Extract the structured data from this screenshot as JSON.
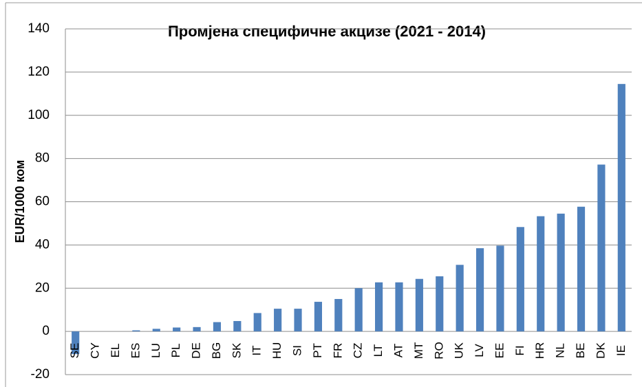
{
  "chart_data": {
    "type": "bar",
    "title": "Промјена специфичне акцизе (2021 - 2014)",
    "y_label": "EUR/1000 ком",
    "categories": [
      "SE",
      "CY",
      "EL",
      "ES",
      "LU",
      "PL",
      "DE",
      "BG",
      "SK",
      "IT",
      "HU",
      "SI",
      "PT",
      "FR",
      "CZ",
      "LT",
      "AT",
      "MT",
      "RO",
      "UK",
      "LV",
      "EE",
      "FI",
      "HR",
      "NL",
      "BE",
      "DK",
      "IE"
    ],
    "values": [
      -10.5,
      0,
      0,
      0.5,
      1.2,
      1.8,
      2,
      4.3,
      4.8,
      8.5,
      10.5,
      10.5,
      13.7,
      15,
      20,
      22.7,
      22.7,
      24.3,
      25.5,
      30.8,
      38.5,
      39.7,
      48.3,
      53.3,
      54.5,
      57.7,
      77.2,
      114.5
    ],
    "color": "#4f81bd",
    "ylim": [
      -20,
      140
    ],
    "yticks": [
      -20,
      0,
      20,
      40,
      60,
      80,
      100,
      120,
      140
    ],
    "grid": true
  }
}
